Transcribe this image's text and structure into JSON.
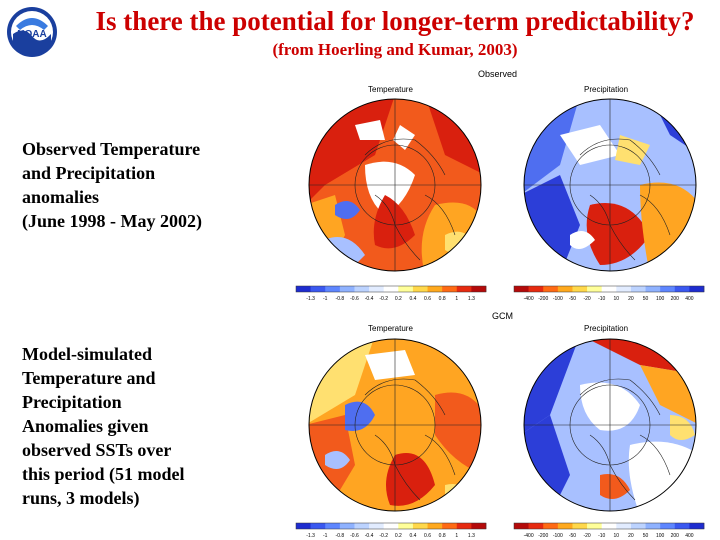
{
  "header": {
    "title": "Is there the potential for longer-term predictability?",
    "subtitle": "(from Hoerling and Kumar, 2003)",
    "logo_text": "NOAA"
  },
  "observed": {
    "section_label": "Observed",
    "description": "Observed Temperature\nand Precipitation\nanomalies\n(June 1998 - May 2002)",
    "temperature_title": "Temperature",
    "precipitation_title": "Precipitation"
  },
  "gcm": {
    "section_label": "GCM",
    "description": "Model-simulated\nTemperature and\nPrecipitation\nAnomalies given\nobserved SSTs over\nthis period (51 model\nruns, 3 models)",
    "temperature_title": "Temperature",
    "precipitation_title": "Precipitation"
  },
  "temperature_scale": {
    "ticks": [
      "-1.3",
      "-1",
      "-0.8",
      "-0.6",
      "-0.4",
      "-0.2",
      "0.2",
      "0.4",
      "0.6",
      "0.8",
      "1",
      "1.3"
    ],
    "colors": [
      "#1e2ccf",
      "#3a58f0",
      "#5e86ff",
      "#8fb2ff",
      "#bcd3ff",
      "#e2ecff",
      "#ffffff",
      "#ffff99",
      "#ffd84a",
      "#ffa91e",
      "#ff6a14",
      "#e62a10",
      "#b40a0a"
    ]
  },
  "precipitation_scale": {
    "ticks": [
      "-400",
      "-200",
      "-100",
      "-50",
      "-20",
      "-10",
      "10",
      "20",
      "50",
      "100",
      "200",
      "400"
    ],
    "colors": [
      "#b40a0a",
      "#e62a10",
      "#ff6a14",
      "#ffa91e",
      "#ffd84a",
      "#ffff99",
      "#ffffff",
      "#e2ecff",
      "#bcd3ff",
      "#8fb2ff",
      "#5e86ff",
      "#3a58f0",
      "#1e2ccf"
    ]
  },
  "map_colors": {
    "warm": "#f25a1c",
    "hot": "#d9200e",
    "orange": "#ffa522",
    "yellow": "#ffe070",
    "white": "#ffffff",
    "blue": "#4f6ef0",
    "lightblue": "#a8c0ff",
    "darkblue": "#2c3ed8",
    "coast": "#222222"
  }
}
